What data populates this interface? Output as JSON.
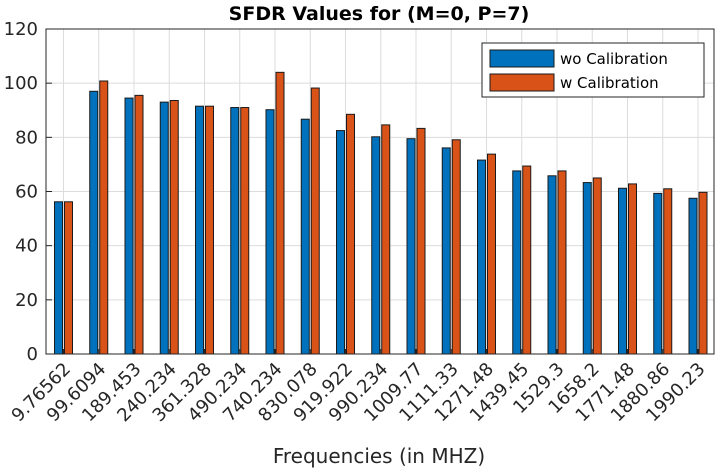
{
  "chart_data": {
    "type": "bar",
    "title": "SFDR Values for (M=0, P=7)",
    "xlabel": "Frequencies (in MHZ)",
    "ylabel": "",
    "ylim": [
      0,
      120
    ],
    "yticks": [
      0,
      20,
      40,
      60,
      80,
      100,
      120
    ],
    "grid": true,
    "legend_position": "top-right",
    "categories": [
      "9.76562",
      "99.6094",
      "189.453",
      "240.234",
      "361.328",
      "490.234",
      "740.234",
      "830.078",
      "919.922",
      "990.234",
      "1009.77",
      "1111.33",
      "1271.48",
      "1439.45",
      "1529.3",
      "1658.2",
      "1771.48",
      "1880.86",
      "1990.23"
    ],
    "series": [
      {
        "name": "wo Calibration",
        "color": "#0072BD",
        "values": [
          56.2,
          97.0,
          94.5,
          93.0,
          91.5,
          91.0,
          90.2,
          86.7,
          82.5,
          80.2,
          79.5,
          76.1,
          71.6,
          67.6,
          65.8,
          63.3,
          61.2,
          59.3,
          57.5
        ]
      },
      {
        "name": "w Calibration",
        "color": "#D95319",
        "values": [
          56.2,
          100.8,
          95.5,
          93.6,
          91.5,
          91.0,
          104.0,
          98.2,
          88.5,
          84.6,
          83.3,
          79.1,
          73.8,
          69.4,
          67.6,
          65.0,
          62.8,
          61.0,
          59.7
        ]
      }
    ]
  }
}
